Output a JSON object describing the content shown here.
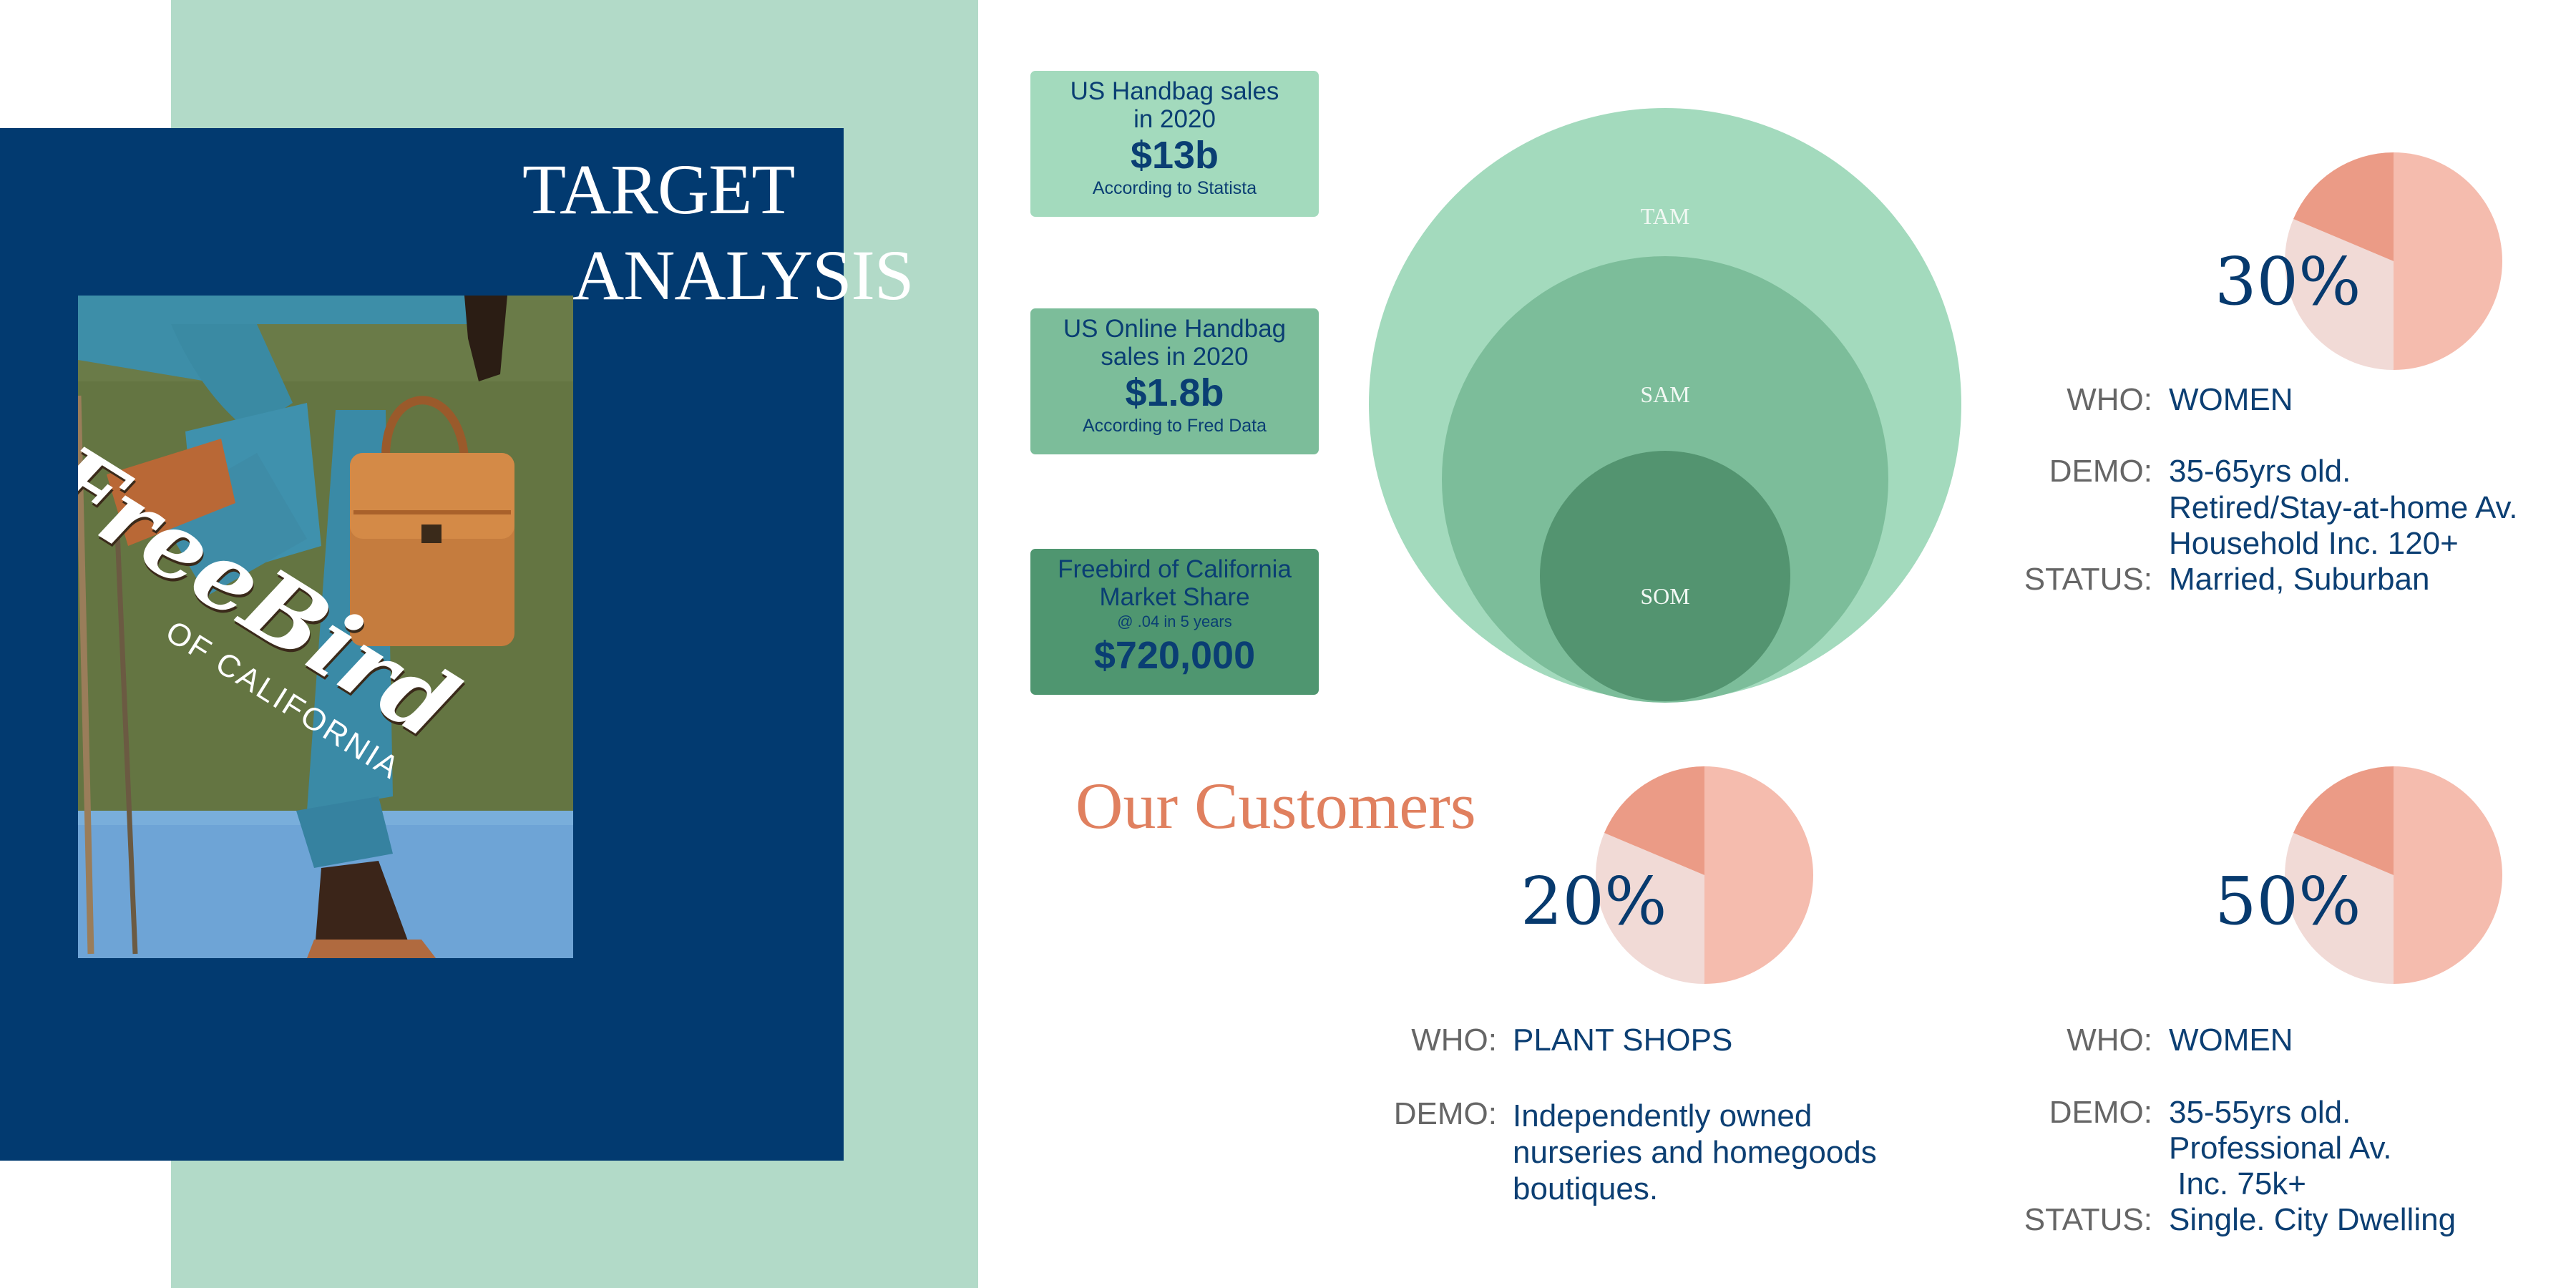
{
  "header": {
    "title_line1": "TARGET",
    "title_line2": "ANALYSIS"
  },
  "photo": {
    "logo_script": "FreeBird",
    "logo_sub": "OF CALIFORNIA"
  },
  "stats": [
    {
      "line1": "US Handbag sales",
      "line2": "in 2020",
      "value": "$13b",
      "note": "According to Statista",
      "color": "#a3dabd"
    },
    {
      "line1": "US Online Handbag",
      "line2": "sales in 2020",
      "value": "$1.8b",
      "note": "According to Fred Data",
      "color": "#7cbd9a"
    },
    {
      "line1": "Freebird of California",
      "line2": "Market Share",
      "note": "@ .04 in 5 years",
      "value": "$720,000",
      "color": "#4f9670"
    }
  ],
  "market": {
    "tam": "TAM",
    "sam": "SAM",
    "som": "SOM",
    "colors": {
      "tam": "#a3dabd",
      "sam": "#7cbd9a",
      "som": "#539470"
    }
  },
  "customers": {
    "title": "Our Customers",
    "pie_colors": {
      "dark": "#eb9b86",
      "light": "#f5bcae",
      "pale": "#f1dad6"
    },
    "segments": [
      {
        "percent": "30%",
        "who_label": "WHO:",
        "who": "WOMEN",
        "demo_label": "DEMO:",
        "demo": [
          "35-65yrs old.",
          "Retired/Stay-at-home Av.",
          "Household Inc. 120+"
        ],
        "status_label": "STATUS:",
        "status": "Married, Suburban"
      },
      {
        "percent": "20%",
        "who_label": "WHO:",
        "who": "PLANT SHOPS",
        "demo_label": "DEMO:",
        "demo": [
          "Independently  owned",
          "nurseries and homegoods",
          "boutiques."
        ]
      },
      {
        "percent": "50%",
        "who_label": "WHO:",
        "who": "WOMEN",
        "demo_label": "DEMO:",
        "demo": [
          "35-55yrs old.",
          "Professional Av.",
          " Inc. 75k+"
        ],
        "status_label": "STATUS:",
        "status": "Single. City Dwelling"
      }
    ]
  }
}
